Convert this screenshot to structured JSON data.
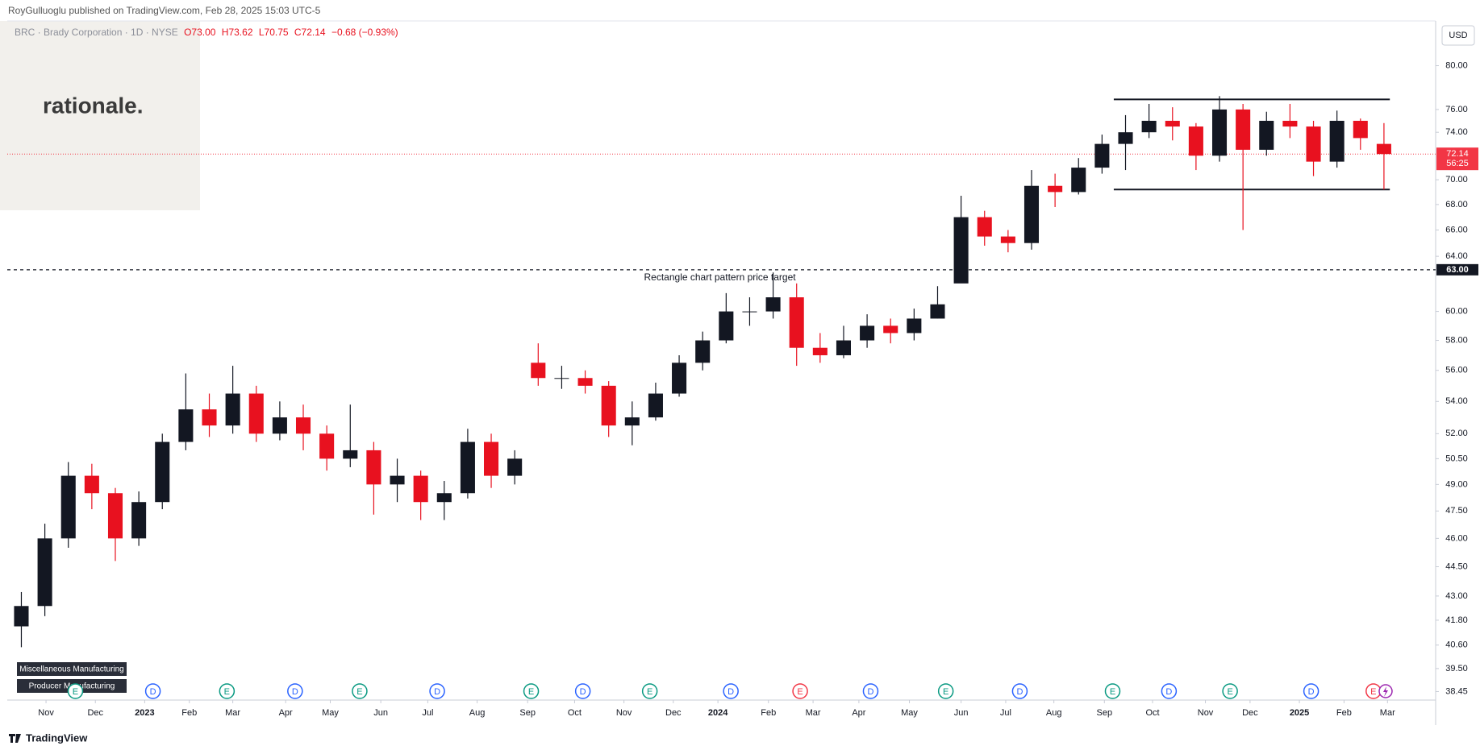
{
  "header": {
    "publisher": "RoyGulluoglu published on TradingView.com, Feb 28, 2025 15:03 UTC-5"
  },
  "legend": {
    "symbol": "BRC · Brady Corporation · 1D · NYSE",
    "open": "O73.00",
    "high": "H73.62",
    "low": "L70.75",
    "close": "C72.14",
    "change": "−0.68 (−0.93%)"
  },
  "logo": "rationale.",
  "currency": "USD",
  "badges": [
    "Miscellaneous Manufacturing",
    "Producer Manufacturing"
  ],
  "footer": "TradingView",
  "chart_data": {
    "type": "candlestick",
    "log_scale": true,
    "up_color": "#131722",
    "down_color": "#e8111f",
    "x": [
      1,
      3,
      5,
      7,
      9,
      11,
      13,
      15,
      17,
      19,
      21,
      23,
      25,
      27,
      29,
      31,
      33,
      35,
      37,
      39,
      41,
      43,
      45,
      47,
      49,
      51,
      53,
      55,
      57,
      59,
      61,
      63,
      65,
      67,
      69,
      71,
      73,
      75,
      77,
      79,
      81,
      83,
      85,
      87,
      89,
      91,
      93,
      95,
      97,
      99,
      101,
      103,
      105,
      107,
      109,
      111,
      113,
      115,
      117
    ],
    "open": [
      41.5,
      42.5,
      46,
      49.5,
      48.5,
      46,
      48,
      51.5,
      53.5,
      52.5,
      54.5,
      52,
      53,
      52,
      50.5,
      51,
      49,
      49.5,
      48,
      48.5,
      51.5,
      49.5,
      56.5,
      55.5,
      55.5,
      55,
      52.5,
      53,
      54.5,
      56.5,
      58,
      60,
      60,
      61,
      57.5,
      57,
      58,
      59,
      58.5,
      59.5,
      62,
      67,
      65.5,
      65,
      69.5,
      69,
      71,
      73,
      74,
      75,
      74.5,
      72,
      76,
      72.5,
      75,
      74.5,
      71.5,
      75,
      73
    ],
    "high": [
      43.2,
      46.8,
      50.3,
      50.2,
      48.8,
      48.6,
      52,
      55.8,
      54.5,
      56.3,
      55,
      54,
      53.8,
      52.5,
      53.8,
      51.5,
      50.5,
      49.8,
      49.2,
      52.3,
      52,
      51,
      57.8,
      56.3,
      56,
      55.3,
      54,
      55.2,
      57,
      58.6,
      61.3,
      61,
      62.8,
      62,
      58.5,
      59,
      59.8,
      59.5,
      60.2,
      61.8,
      68.7,
      67.5,
      66,
      70.8,
      70.5,
      71.8,
      73.8,
      75.5,
      76.5,
      76.2,
      74.8,
      77.2,
      76.5,
      75.8,
      76.5,
      75,
      75.9,
      75.2,
      74.8
    ],
    "low": [
      40.5,
      42,
      45.5,
      47.6,
      44.8,
      45.6,
      47.6,
      51,
      51.8,
      52,
      51.5,
      51.6,
      51,
      49.8,
      50,
      47.3,
      48,
      47,
      47,
      48.2,
      48.8,
      49,
      55,
      54.8,
      54.5,
      51.8,
      51.3,
      52.8,
      54.3,
      56,
      57.8,
      59,
      59.5,
      56.3,
      56.5,
      56.8,
      57.5,
      57.8,
      58,
      59.5,
      62.2,
      64.8,
      64.3,
      64.5,
      67.8,
      68.8,
      70.5,
      70.8,
      73.5,
      73.3,
      70.8,
      71.5,
      66,
      72,
      73.5,
      70.3,
      71,
      72.5,
      69.2
    ],
    "close": [
      42.5,
      46,
      49.5,
      48.5,
      46,
      48,
      51.5,
      53.5,
      52.5,
      54.5,
      52,
      53,
      52,
      50.5,
      51,
      49,
      49.5,
      48,
      48.5,
      51.5,
      49.5,
      50.5,
      55.5,
      55.5,
      55,
      52.5,
      53,
      54.5,
      56.5,
      58,
      60,
      60,
      61,
      57.5,
      57,
      58,
      59,
      58.5,
      59.5,
      60.5,
      67,
      65.5,
      65,
      69.5,
      69,
      71,
      73,
      74,
      75,
      74.5,
      72,
      76,
      72.5,
      75,
      74.5,
      71.5,
      75,
      73.5,
      72.14
    ],
    "xlim": [
      -0.2,
      121.4
    ],
    "ylim": [
      38.07,
      84.3
    ],
    "xticks": [
      {
        "value": 3.1,
        "label": "Nov"
      },
      {
        "value": 7.3,
        "label": "Dec"
      },
      {
        "value": 11.5,
        "label": "2023"
      },
      {
        "value": 15.3,
        "label": "Feb"
      },
      {
        "value": 19,
        "label": "Mar"
      },
      {
        "value": 23.5,
        "label": "Apr"
      },
      {
        "value": 27.3,
        "label": "May"
      },
      {
        "value": 31.6,
        "label": "Jun"
      },
      {
        "value": 35.6,
        "label": "Jul"
      },
      {
        "value": 39.8,
        "label": "Aug"
      },
      {
        "value": 44.1,
        "label": "Sep"
      },
      {
        "value": 48.1,
        "label": "Oct"
      },
      {
        "value": 52.3,
        "label": "Nov"
      },
      {
        "value": 56.5,
        "label": "Dec"
      },
      {
        "value": 60.3,
        "label": "2024"
      },
      {
        "value": 64.6,
        "label": "Feb"
      },
      {
        "value": 68.4,
        "label": "Mar"
      },
      {
        "value": 72.3,
        "label": "Apr"
      },
      {
        "value": 76.6,
        "label": "May"
      },
      {
        "value": 81,
        "label": "Jun"
      },
      {
        "value": 84.8,
        "label": "Jul"
      },
      {
        "value": 88.9,
        "label": "Aug"
      },
      {
        "value": 93.2,
        "label": "Sep"
      },
      {
        "value": 97.3,
        "label": "Oct"
      },
      {
        "value": 101.8,
        "label": "Nov"
      },
      {
        "value": 105.6,
        "label": "Dec"
      },
      {
        "value": 109.8,
        "label": "2025"
      },
      {
        "value": 113.6,
        "label": "Feb"
      },
      {
        "value": 117.3,
        "label": "Mar"
      }
    ],
    "yticks": [
      {
        "value": 80,
        "label": "80.00"
      },
      {
        "value": 76,
        "label": "76.00"
      },
      {
        "value": 74,
        "label": "74.00"
      },
      {
        "value": 70,
        "label": "70.00"
      },
      {
        "value": 68,
        "label": "68.00"
      },
      {
        "value": 66,
        "label": "66.00"
      },
      {
        "value": 64,
        "label": "64.00"
      },
      {
        "value": 60,
        "label": "60.00"
      },
      {
        "value": 58,
        "label": "58.00"
      },
      {
        "value": 56,
        "label": "56.00"
      },
      {
        "value": 54,
        "label": "54.00"
      },
      {
        "value": 52,
        "label": "52.00"
      },
      {
        "value": 50.5,
        "label": "50.50"
      },
      {
        "value": 49,
        "label": "49.00"
      },
      {
        "value": 47.5,
        "label": "47.50"
      },
      {
        "value": 46,
        "label": "46.00"
      },
      {
        "value": 44.5,
        "label": "44.50"
      },
      {
        "value": 43,
        "label": "43.00"
      },
      {
        "value": 41.8,
        "label": "41.80"
      },
      {
        "value": 40.6,
        "label": "40.60"
      },
      {
        "value": 39.5,
        "label": "39.50"
      },
      {
        "value": 38.45,
        "label": "38.45"
      }
    ],
    "last_price": {
      "value": 72.14,
      "label": "72.14",
      "countdown": "56:25",
      "color": "#f23645"
    },
    "target_line": {
      "value": 63,
      "label": "63.00",
      "annotation": "Rectangle chart pattern price target",
      "annotation_x": 67.2
    },
    "rectangle": {
      "x": [
        94,
        117.5
      ],
      "top": 76.9,
      "bottom": 69.2
    },
    "events": [
      {
        "x": 5.6,
        "label": "E",
        "color": "#089981"
      },
      {
        "x": 12.2,
        "label": "D",
        "color": "#2962ff"
      },
      {
        "x": 18.5,
        "label": "E",
        "color": "#089981"
      },
      {
        "x": 24.3,
        "label": "D",
        "color": "#2962ff"
      },
      {
        "x": 29.8,
        "label": "E",
        "color": "#089981"
      },
      {
        "x": 36.4,
        "label": "D",
        "color": "#2962ff"
      },
      {
        "x": 44.4,
        "label": "E",
        "color": "#089981"
      },
      {
        "x": 48.8,
        "label": "D",
        "color": "#2962ff"
      },
      {
        "x": 54.5,
        "label": "E",
        "color": "#089981"
      },
      {
        "x": 61.4,
        "label": "D",
        "color": "#2962ff"
      },
      {
        "x": 67.3,
        "label": "E",
        "color": "#f23645"
      },
      {
        "x": 73.3,
        "label": "D",
        "color": "#2962ff"
      },
      {
        "x": 79.7,
        "label": "E",
        "color": "#089981"
      },
      {
        "x": 86,
        "label": "D",
        "color": "#2962ff"
      },
      {
        "x": 93.9,
        "label": "E",
        "color": "#089981"
      },
      {
        "x": 98.7,
        "label": "D",
        "color": "#2962ff"
      },
      {
        "x": 103.9,
        "label": "E",
        "color": "#089981"
      },
      {
        "x": 110.8,
        "label": "D",
        "color": "#2962ff"
      },
      {
        "x": 116.1,
        "label": "E",
        "color": "#f23645"
      }
    ]
  }
}
